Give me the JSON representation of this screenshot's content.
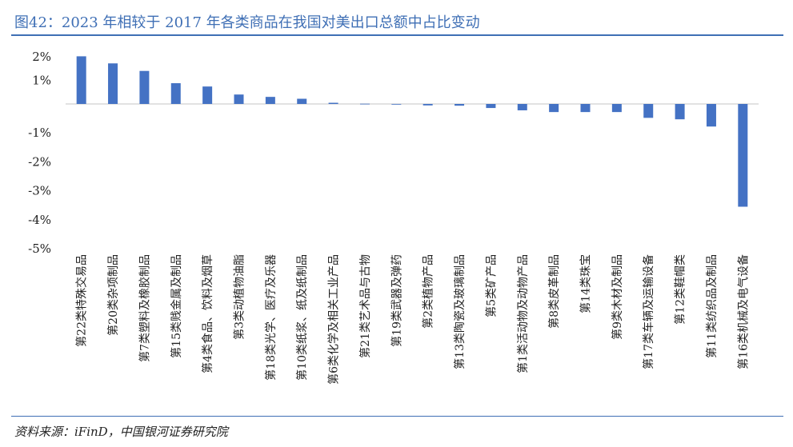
{
  "header": {
    "title": "图42：2023 年相较于 2017 年各类商品在我国对美出口总额中占比变动"
  },
  "footer": {
    "source": "资料来源：iFinD，中国银河证券研究院"
  },
  "colors": {
    "accent": "#3f6fb5",
    "bar": "#4472c4"
  },
  "chart_data": {
    "type": "bar",
    "categories": [
      "第22类特殊交易品",
      "第20类杂项制品",
      "第7类塑料及橡胶制品",
      "第15类贱金属及制品",
      "第4类食品、饮料及烟草",
      "第3类动植物油脂",
      "第18类光学、医疗及乐器",
      "第10类纸浆、纸及纸制品",
      "第6类化学及相关工业产品",
      "第21类艺术品与古物",
      "第19类武器及弹药",
      "第2类植物产品",
      "第13类陶瓷及玻璃制品",
      "第5类矿产品",
      "第1类活动物及动物产品",
      "第8类皮革制品",
      "第14类珠宝",
      "第9类木材及制品",
      "第17类车辆及运输设备",
      "第12类鞋帽类",
      "第11类纺织品及制品",
      "第16类机械及电气设备"
    ],
    "values": [
      2.02,
      1.72,
      1.4,
      0.88,
      0.74,
      0.4,
      0.3,
      0.22,
      0.05,
      0.01,
      -0.02,
      -0.05,
      -0.06,
      -0.14,
      -0.22,
      -0.28,
      -0.28,
      -0.28,
      -0.48,
      -0.53,
      -0.78,
      -3.55
    ],
    "title": "",
    "xlabel": "",
    "ylabel": "",
    "ylim": [
      -5,
      2
    ],
    "yticks": [
      "2%",
      "1%",
      "-1%",
      "-2%",
      "-3%",
      "-4%",
      "-5%"
    ],
    "grid": false,
    "legend": "none"
  }
}
